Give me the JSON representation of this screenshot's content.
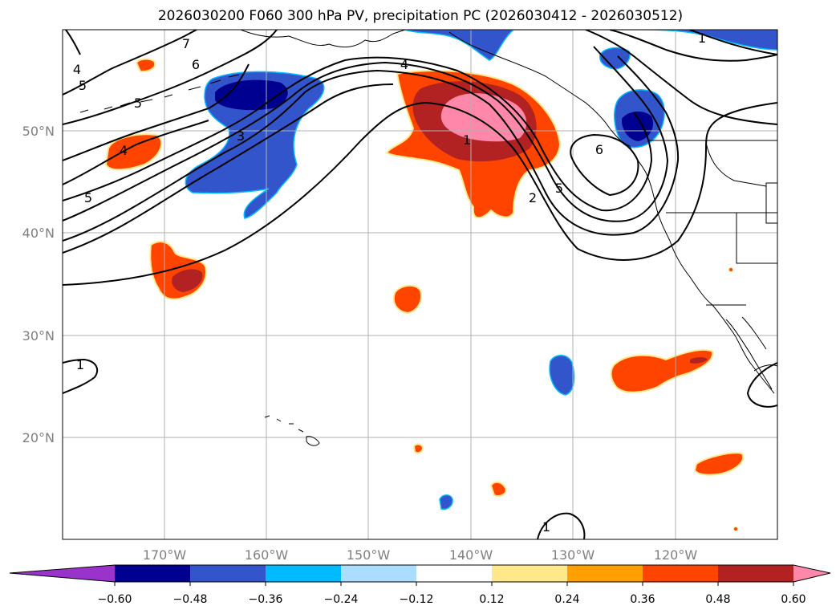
{
  "title": "2026030200 F060 300 hPa PV, precipitation PC (2026030412 - 2026030512)",
  "map": {
    "lat_ticks": [
      "50°N",
      "40°N",
      "30°N",
      "20°N"
    ],
    "lon_ticks": [
      "170°W",
      "160°W",
      "150°W",
      "140°W",
      "130°W",
      "120°W"
    ],
    "grid": true,
    "contour_color": "#000000",
    "contour_labels": [
      "6",
      "7",
      "4",
      "5",
      "5",
      "4",
      "4",
      "3",
      "5",
      "1",
      "2",
      "5",
      "6",
      "1",
      "1",
      "1"
    ]
  },
  "colorbar": {
    "tick_labels": [
      "−0.60",
      "−0.48",
      "−0.36",
      "−0.24",
      "−0.12",
      "0.12",
      "0.24",
      "0.36",
      "0.48",
      "0.60"
    ],
    "colors": [
      "#9933cc",
      "#000090",
      "#3355cc",
      "#00bbff",
      "#aaddff",
      "#ffffff",
      "#ffe88a",
      "#ffa000",
      "#ff4400",
      "#b22222",
      "#ff88aa"
    ],
    "extend": "both"
  }
}
